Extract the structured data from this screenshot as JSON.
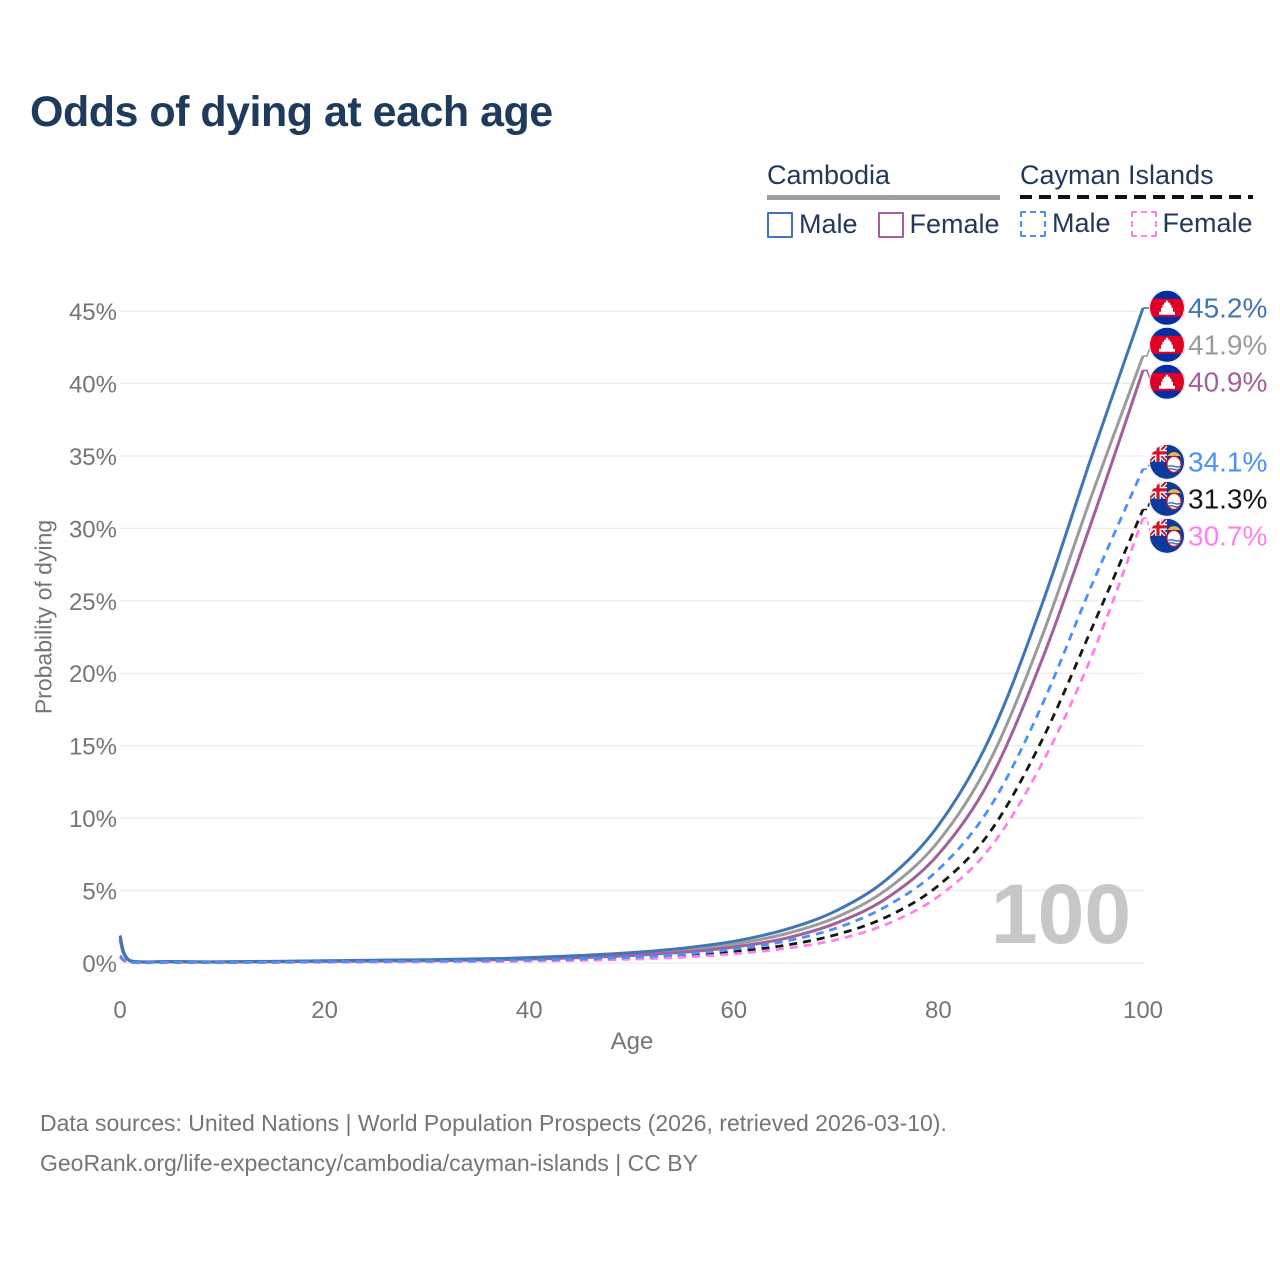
{
  "page": {
    "title": "Odds of dying at each age"
  },
  "legend": {
    "groups": [
      {
        "label": "Cambodia",
        "line_style": "solid",
        "underline_color": "#9e9e9e",
        "items": [
          {
            "label": "Male",
            "color": "#4076b5",
            "dashed": false
          },
          {
            "label": "Female",
            "color": "#a2609c",
            "dashed": false
          }
        ]
      },
      {
        "label": "Cayman Islands",
        "line_style": "dashed",
        "underline_color": "#111111",
        "items": [
          {
            "label": "Male",
            "color": "#4a90f7",
            "dashed": true
          },
          {
            "label": "Female",
            "color": "#ff80ec",
            "dashed": true
          }
        ]
      }
    ]
  },
  "chart_data": {
    "type": "line",
    "title": "Odds of dying at each age",
    "xlabel": "Age",
    "ylabel": "Probability of dying",
    "xlim": [
      0,
      100
    ],
    "ylim_percent": [
      0,
      45
    ],
    "grid": "horizontal",
    "gridline_color": "#ebebeb",
    "axis_text_color": "#757575",
    "watermark": "100",
    "watermark_color": "#c7c7c7",
    "x_ticks": [
      0,
      20,
      40,
      60,
      80,
      100
    ],
    "x_tick_labels": [
      "0",
      "20",
      "40",
      "60",
      "80",
      "100"
    ],
    "y_ticks_percent": [
      0,
      5,
      10,
      15,
      20,
      25,
      30,
      35,
      40,
      45
    ],
    "y_tick_labels": [
      "0%",
      "5%",
      "10%",
      "15%",
      "20%",
      "25%",
      "30%",
      "35%",
      "40%",
      "45%"
    ],
    "ages": [
      0,
      1,
      5,
      10,
      15,
      20,
      25,
      30,
      35,
      40,
      45,
      50,
      55,
      60,
      65,
      70,
      75,
      80,
      85,
      90,
      95,
      100
    ],
    "series": [
      {
        "name": "Cambodia Male",
        "country": "Cambodia",
        "sex": "Male",
        "flag": "kh",
        "color": "#4076b5",
        "dashed": false,
        "end_label": "45.2%",
        "values_percent": [
          1.9,
          0.16,
          0.1,
          0.08,
          0.11,
          0.16,
          0.19,
          0.22,
          0.28,
          0.37,
          0.52,
          0.72,
          1.02,
          1.5,
          2.3,
          3.6,
          5.8,
          9.5,
          15.5,
          24.5,
          35.0,
          45.2
        ]
      },
      {
        "name": "Cambodia Both sexes",
        "country": "Cambodia",
        "sex": "Both sexes",
        "flag": "kh",
        "color": "#9b9b9b",
        "dashed": false,
        "end_label": "41.9%",
        "values_percent": [
          1.75,
          0.14,
          0.09,
          0.07,
          0.09,
          0.13,
          0.16,
          0.19,
          0.24,
          0.32,
          0.44,
          0.61,
          0.87,
          1.3,
          2.0,
          3.15,
          5.1,
          8.4,
          13.9,
          22.3,
          32.3,
          41.9
        ]
      },
      {
        "name": "Cambodia Female",
        "country": "Cambodia",
        "sex": "Female",
        "flag": "kh",
        "color": "#a2609c",
        "dashed": false,
        "end_label": "40.9%",
        "values_percent": [
          1.6,
          0.13,
          0.08,
          0.06,
          0.08,
          0.11,
          0.13,
          0.16,
          0.2,
          0.27,
          0.37,
          0.52,
          0.74,
          1.1,
          1.7,
          2.75,
          4.5,
          7.5,
          12.6,
          20.7,
          30.5,
          40.9
        ]
      },
      {
        "name": "Cayman Islands Male",
        "country": "Cayman Islands",
        "sex": "Male",
        "flag": "ky",
        "color": "#4a90f7",
        "dashed": true,
        "end_label": "34.1%",
        "values_percent": [
          0.5,
          0.05,
          0.04,
          0.03,
          0.06,
          0.09,
          0.11,
          0.13,
          0.16,
          0.21,
          0.28,
          0.4,
          0.6,
          0.95,
          1.5,
          2.4,
          3.95,
          6.45,
          10.7,
          17.6,
          26.1,
          34.1
        ]
      },
      {
        "name": "Cayman Islands Both sexes",
        "country": "Cayman Islands",
        "sex": "Both sexes",
        "flag": "ky",
        "color": "#161616",
        "dashed": true,
        "end_label": "31.3%",
        "values_percent": [
          0.45,
          0.04,
          0.03,
          0.03,
          0.05,
          0.07,
          0.09,
          0.11,
          0.13,
          0.17,
          0.23,
          0.33,
          0.5,
          0.78,
          1.22,
          1.95,
          3.2,
          5.35,
          9.0,
          15.2,
          23.1,
          31.3
        ]
      },
      {
        "name": "Cayman Islands Female",
        "country": "Cayman Islands",
        "sex": "Female",
        "flag": "ky",
        "color": "#ff80ec",
        "dashed": true,
        "end_label": "30.7%",
        "values_percent": [
          0.4,
          0.04,
          0.03,
          0.02,
          0.04,
          0.05,
          0.06,
          0.08,
          0.1,
          0.13,
          0.18,
          0.26,
          0.4,
          0.63,
          1.0,
          1.6,
          2.7,
          4.6,
          7.9,
          13.6,
          21.2,
          30.7
        ]
      }
    ]
  },
  "footer": {
    "line1": "Data sources: United Nations | World Population Prospects (2026, retrieved 2026-03-10).",
    "line2": "GeoRank.org/life-expectancy/cambodia/cayman-islands | CC BY"
  }
}
